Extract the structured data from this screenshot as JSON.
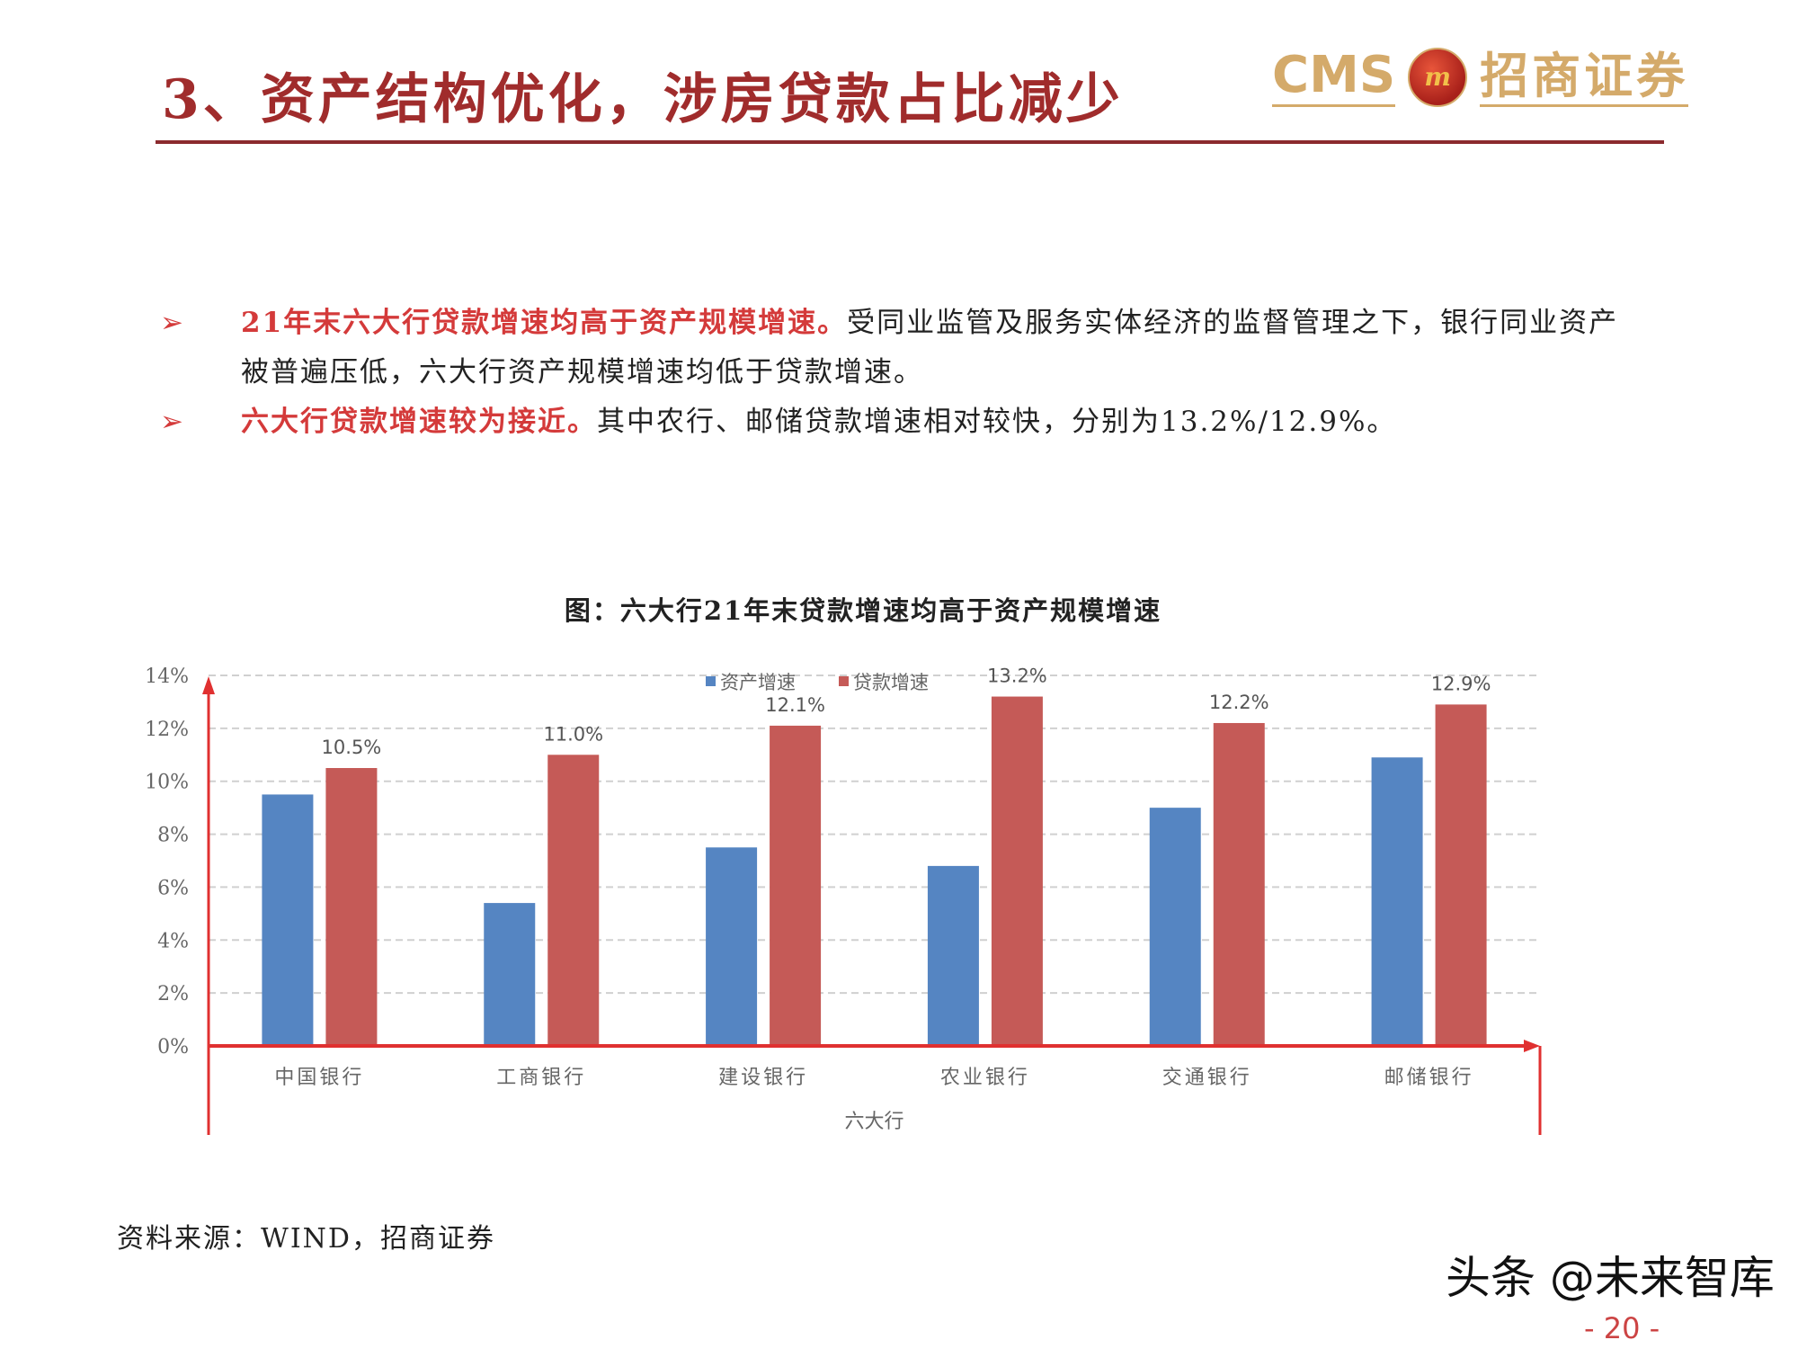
{
  "header": {
    "title": "3、资产结构优化，涉房贷款占比减少",
    "logo_text_en": "CMS",
    "logo_text_cn": "招商证券",
    "colors": {
      "title": "#a02c2c",
      "rule": "#8b2a2e",
      "logo": "#d4aa6a"
    }
  },
  "bullets": [
    {
      "icon": "arrow-right-icon",
      "highlight": "21年末六大行贷款增速均高于资产规模增速。",
      "text": "受同业监管及服务实体经济的监督管理之下，银行同业资产被普遍压低，六大行资产规模增速均低于贷款增速。"
    },
    {
      "icon": "arrow-right-icon",
      "highlight": "六大行贷款增速较为接近。",
      "text": "其中农行、邮储贷款增速相对较快，分别为13.2%/12.9%。"
    }
  ],
  "chart_data": {
    "type": "bar",
    "title": "图：六大行21年末贷款增速均高于资产规模增速",
    "xlabel": "六大行",
    "ylabel": "",
    "categories": [
      "中国银行",
      "工商银行",
      "建设银行",
      "农业银行",
      "交通银行",
      "邮储银行"
    ],
    "series": [
      {
        "name": "资产增速",
        "color": "#5585c2",
        "values": [
          9.5,
          5.4,
          7.5,
          6.8,
          9.0,
          10.9
        ]
      },
      {
        "name": "贷款增速",
        "color": "#c55a57",
        "values": [
          10.5,
          11.0,
          12.1,
          13.2,
          12.2,
          12.9
        ],
        "data_labels": [
          "10.5%",
          "11.0%",
          "12.1%",
          "13.2%",
          "12.2%",
          "12.9%"
        ]
      }
    ],
    "yticks": [
      "0%",
      "2%",
      "4%",
      "6%",
      "8%",
      "10%",
      "12%",
      "14%"
    ],
    "ylim": [
      0,
      14
    ],
    "grid": true,
    "legend": "top-center",
    "axis_color": "#e03030"
  },
  "source": "资料来源：WIND，招商证券",
  "watermark": "头条 @未来智库",
  "page_number": "- 20 -"
}
